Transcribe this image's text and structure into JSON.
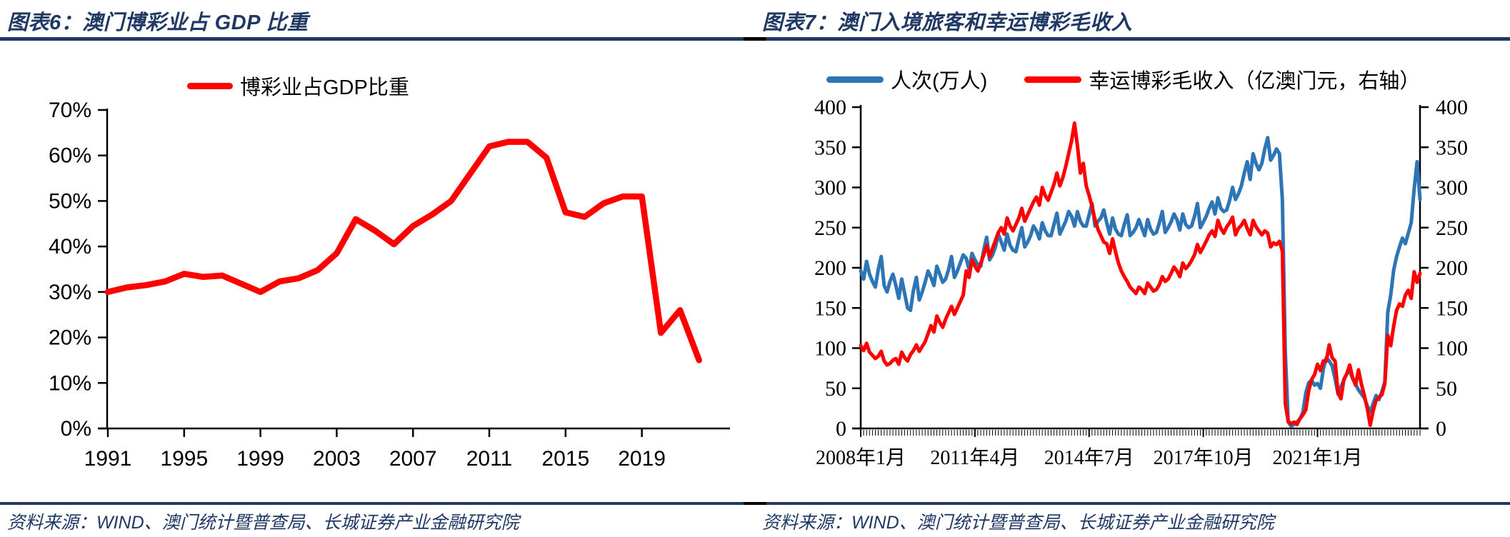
{
  "colors": {
    "navy": "#1f3864",
    "red": "#fe0000",
    "blue": "#2e75b6",
    "axis": "#000000",
    "background": "#ffffff"
  },
  "panels": [
    {
      "title": "图表6：澳门博彩业占 GDP 比重",
      "source": "资料来源：WIND、澳门统计暨普查局、长城证券产业金融研究院"
    },
    {
      "title": "图表7：澳门入境旅客和幸运博彩毛收入",
      "source": "资料来源：WIND、澳门统计暨普查局、长城证券产业金融研究院"
    }
  ],
  "chart_data": [
    {
      "type": "line",
      "title": "澳门博彩业占GDP比重",
      "legend": "博彩业占GDP比重",
      "line_color": "#fe0000",
      "unit": "%",
      "ylim": [
        0,
        70
      ],
      "y_tick_labels": [
        "70%",
        "60%",
        "50%",
        "40%",
        "30%",
        "20%",
        "10%",
        "0%"
      ],
      "x_tick_labels": [
        "1991",
        "1995",
        "1999",
        "2003",
        "2007",
        "2011",
        "2015",
        "2019"
      ],
      "x": [
        1991,
        1992,
        1993,
        1994,
        1995,
        1996,
        1997,
        1998,
        1999,
        2000,
        2001,
        2002,
        2003,
        2004,
        2005,
        2006,
        2007,
        2008,
        2009,
        2010,
        2011,
        2012,
        2013,
        2014,
        2015,
        2016,
        2017,
        2018,
        2019,
        2020,
        2021,
        2022
      ],
      "values": [
        30,
        31,
        31.5,
        32.3,
        34,
        33.3,
        33.6,
        31.8,
        30,
        32.3,
        33,
        34.8,
        38.5,
        46,
        43.5,
        40.5,
        44.5,
        47,
        50,
        56,
        62,
        63,
        63,
        59.5,
        47.5,
        46.5,
        49.5,
        51,
        51,
        21,
        26,
        15
      ]
    },
    {
      "type": "line",
      "title": "澳门入境旅客和幸运博彩毛收入",
      "x_frequency": "monthly",
      "x_range": [
        "2008年1月",
        "2023年12月"
      ],
      "x_tick_labels": [
        "2008年1月",
        "2011年4月",
        "2014年7月",
        "2017年10月",
        "2021年1月"
      ],
      "x_tick_month_index": [
        0,
        39,
        78,
        117,
        156
      ],
      "ylim_left": [
        0,
        400
      ],
      "ylim_right": [
        0,
        400
      ],
      "y_tick_labels": [
        "400",
        "350",
        "300",
        "250",
        "200",
        "150",
        "100",
        "50",
        "0"
      ],
      "legend_position": "top",
      "series": [
        {
          "name": "人次(万人)",
          "axis": "left",
          "color": "#2e75b6",
          "values": [
            196,
            186,
            208,
            192,
            183,
            176,
            198,
            214,
            178,
            170,
            183,
            192,
            178,
            162,
            186,
            168,
            150,
            147,
            172,
            188,
            160,
            170,
            182,
            196,
            188,
            178,
            202,
            192,
            182,
            186,
            198,
            214,
            188,
            196,
            206,
            216,
            212,
            198,
            218,
            210,
            204,
            202,
            222,
            238,
            210,
            216,
            226,
            242,
            232,
            222,
            242,
            228,
            222,
            220,
            236,
            250,
            226,
            232,
            240,
            252,
            246,
            236,
            256,
            246,
            240,
            240,
            254,
            268,
            242,
            250,
            258,
            270,
            264,
            252,
            270,
            258,
            252,
            252,
            266,
            280,
            252,
            258,
            262,
            272,
            256,
            242,
            262,
            248,
            242,
            240,
            254,
            266,
            240,
            244,
            250,
            260,
            250,
            240,
            260,
            248,
            242,
            244,
            256,
            270,
            244,
            250,
            257,
            267,
            260,
            247,
            267,
            254,
            250,
            252,
            264,
            280,
            250,
            257,
            264,
            274,
            282,
            267,
            287,
            274,
            270,
            272,
            284,
            300,
            285,
            292,
            302,
            318,
            332,
            310,
            342,
            330,
            322,
            330,
            348,
            362,
            334,
            340,
            348,
            342,
            285,
            96,
            8,
            3,
            5,
            8,
            12,
            20,
            44,
            57,
            60,
            54,
            56,
            50,
            74,
            88,
            84,
            78,
            62,
            43,
            52,
            60,
            68,
            72,
            62,
            55,
            48,
            43,
            38,
            28,
            20,
            31,
            41,
            36,
            46,
            58,
            145,
            166,
            197,
            214,
            226,
            237,
            230,
            243,
            256,
            298,
            332,
            285
          ]
        },
        {
          "name": "幸运博彩毛收入（亿澳门元，右轴）",
          "axis": "right",
          "color": "#fe0000",
          "values": [
            103,
            97,
            106,
            95,
            91,
            87,
            90,
            96,
            84,
            79,
            81,
            85,
            87,
            80,
            95,
            88,
            84,
            92,
            97,
            104,
            96,
            102,
            108,
            118,
            128,
            120,
            140,
            132,
            126,
            136,
            144,
            152,
            142,
            150,
            158,
            166,
            196,
            188,
            210,
            202,
            196,
            206,
            216,
            228,
            214,
            224,
            234,
            244,
            250,
            242,
            262,
            252,
            246,
            254,
            262,
            274,
            258,
            266,
            274,
            282,
            288,
            278,
            300,
            290,
            284,
            294,
            304,
            318,
            302,
            312,
            326,
            342,
            358,
            380,
            352,
            318,
            330,
            302,
            290,
            276,
            260,
            248,
            240,
            232,
            230,
            218,
            236,
            220,
            206,
            196,
            189,
            183,
            176,
            172,
            168,
            176,
            173,
            168,
            181,
            176,
            171,
            173,
            179,
            189,
            183,
            186,
            193,
            201,
            196,
            189,
            206,
            199,
            203,
            209,
            216,
            229,
            219,
            226,
            233,
            241,
            246,
            239,
            259,
            249,
            243,
            251,
            256,
            263,
            241,
            249,
            253,
            259,
            249,
            241,
            259,
            251,
            246,
            241,
            246,
            243,
            226,
            231,
            229,
            233,
            221,
            31,
            9,
            6,
            8,
            5,
            12,
            17,
            23,
            47,
            61,
            67,
            80,
            72,
            84,
            84,
            104,
            88,
            84,
            44,
            37,
            61,
            68,
            79,
            63,
            54,
            73,
            55,
            41,
            25,
            4,
            22,
            35,
            39,
            42,
            56,
            116,
            103,
            127,
            147,
            155,
            152,
            166,
            172,
            162,
            195,
            182,
            193
          ]
        }
      ]
    }
  ]
}
